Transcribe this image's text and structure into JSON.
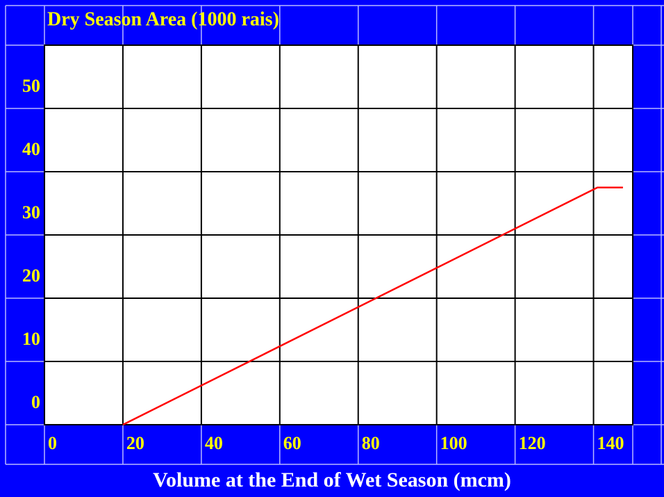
{
  "chart_data": {
    "type": "line",
    "ylabel": "Dry Season Area (1000 rais)",
    "xlabel": "Volume at the End of Wet Season (mcm)",
    "xlim": [
      0,
      150
    ],
    "xticks": [
      0,
      20,
      40,
      60,
      80,
      100,
      120,
      140
    ],
    "ylim": [
      0,
      60
    ],
    "yticks": [
      0,
      10,
      20,
      30,
      40,
      50
    ],
    "grid": true,
    "series": [
      {
        "color": "#ff0000",
        "x": [
          20,
          141,
          147.5
        ],
        "values": [
          0,
          37.5,
          37.5
        ]
      }
    ]
  }
}
